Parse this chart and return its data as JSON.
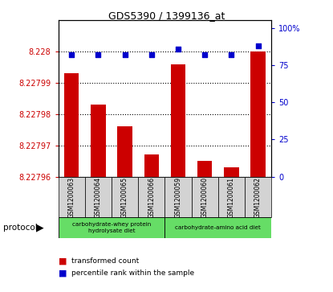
{
  "title": "GDS5390 / 1399136_at",
  "samples": [
    "GSM1200063",
    "GSM1200064",
    "GSM1200065",
    "GSM1200066",
    "GSM1200059",
    "GSM1200060",
    "GSM1200061",
    "GSM1200062"
  ],
  "red_values": [
    8.227993,
    8.227983,
    8.227976,
    8.227967,
    8.227996,
    8.227965,
    8.227963,
    8.228
  ],
  "blue_values": [
    82,
    82,
    82,
    82,
    86,
    82,
    82,
    88
  ],
  "ymin": 8.22796,
  "ymax": 8.22801,
  "yticks": [
    8.22796,
    8.22797,
    8.22798,
    8.22799,
    8.228
  ],
  "ytick_labels": [
    "8.22796",
    "8.22797",
    "8.22798",
    "8.22799",
    "8.228"
  ],
  "y2min": 0,
  "y2max": 105,
  "y2ticks": [
    0,
    25,
    50,
    75,
    100
  ],
  "y2tick_labels": [
    "0",
    "25",
    "50",
    "75",
    "100%"
  ],
  "bar_color": "#CC0000",
  "dot_color": "#0000CC",
  "bar_width": 0.55,
  "plot_bg": "#ffffff",
  "legend_red_label": "transformed count",
  "legend_blue_label": "percentile rank within the sample",
  "protocol_label": "protocol",
  "left_tick_color": "#CC0000",
  "right_tick_color": "#0000CC",
  "group1_label": "carbohydrate-whey protein\nhydrolysate diet",
  "group2_label": "carbohydrate-amino acid diet",
  "group_color": "#66DD66"
}
